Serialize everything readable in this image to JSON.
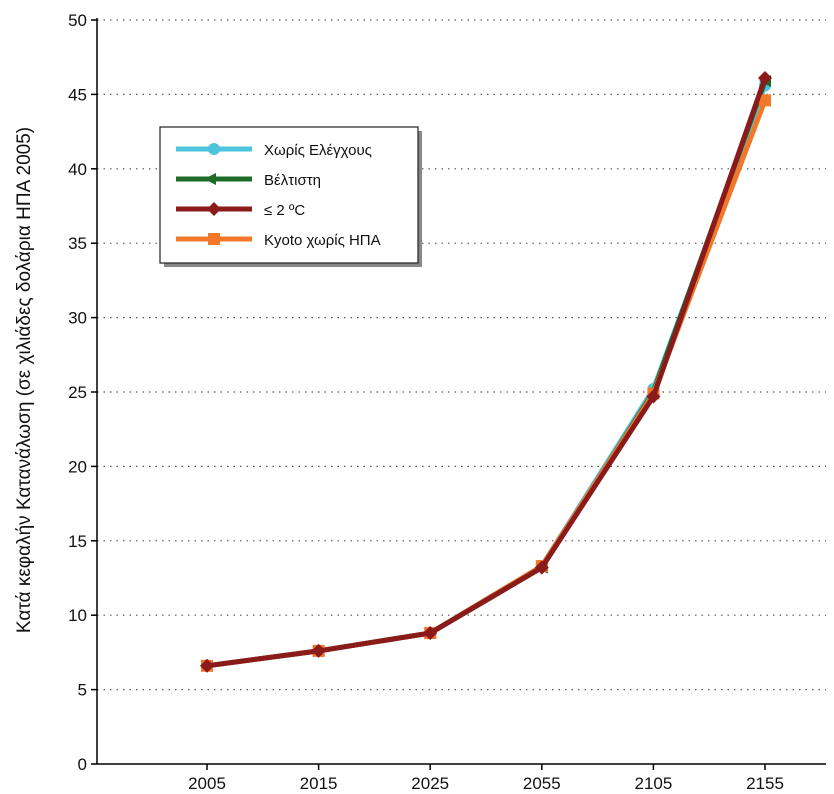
{
  "chart_data": {
    "type": "line",
    "title": "",
    "xlabel": "",
    "ylabel": "Κατά κεφαλήν Κατανάλωση  (σε χιλιάδες δολάρια ΗΠΑ 2005)",
    "categories": [
      "2005",
      "2015",
      "2025",
      "2055",
      "2105",
      "2155"
    ],
    "ylim": [
      0,
      50
    ],
    "yticks": [
      "0",
      "5",
      "10",
      "15",
      "20",
      "25",
      "30",
      "35",
      "40",
      "45",
      "50"
    ],
    "grid": "horizontal-dotted",
    "legend_position": "top-left",
    "series": [
      {
        "name": "Χωρίς Ελέγχους",
        "color": "#4ec3dc",
        "marker": "circle",
        "values": [
          6.6,
          7.6,
          8.8,
          13.3,
          25.2,
          45.6
        ]
      },
      {
        "name": "Βέλτιστη",
        "color": "#1e6b2a",
        "marker": "triangle",
        "values": [
          6.6,
          7.6,
          8.8,
          13.2,
          25.0,
          45.9
        ]
      },
      {
        "name": "Kyoto χωρίς ΗΠΑ",
        "color": "#f07828",
        "marker": "square",
        "values": [
          6.6,
          7.6,
          8.8,
          13.3,
          24.9,
          44.6
        ]
      },
      {
        "name": "≤ 2 ºC",
        "color": "#8b1a1a",
        "marker": "diamond",
        "values": [
          6.6,
          7.6,
          8.8,
          13.2,
          24.7,
          46.1
        ]
      }
    ],
    "legend_order": [
      0,
      1,
      3,
      2
    ]
  }
}
